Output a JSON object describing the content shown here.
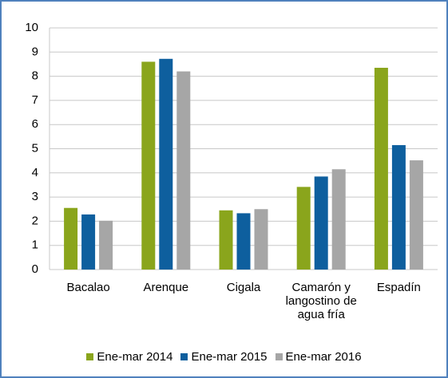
{
  "chart_data": {
    "type": "bar",
    "categories": [
      "Bacalao",
      "Arenque",
      "Cigala",
      "Camarón y langostino de agua fría",
      "Espadín"
    ],
    "series": [
      {
        "name": "Ene-mar 2014",
        "color": "#8aa51c",
        "values": [
          2.55,
          8.6,
          2.45,
          3.42,
          8.35
        ]
      },
      {
        "name": "Ene-mar 2015",
        "color": "#0e5f9e",
        "values": [
          2.28,
          8.72,
          2.33,
          3.85,
          5.15
        ]
      },
      {
        "name": "Ene-mar 2016",
        "color": "#a6a6a6",
        "values": [
          2.02,
          8.2,
          2.5,
          4.15,
          4.52
        ]
      }
    ],
    "ylim": [
      0,
      10
    ],
    "yticks": [
      0,
      1,
      2,
      3,
      4,
      5,
      6,
      7,
      8,
      9,
      10
    ],
    "grid": true,
    "legend": "bottom"
  }
}
